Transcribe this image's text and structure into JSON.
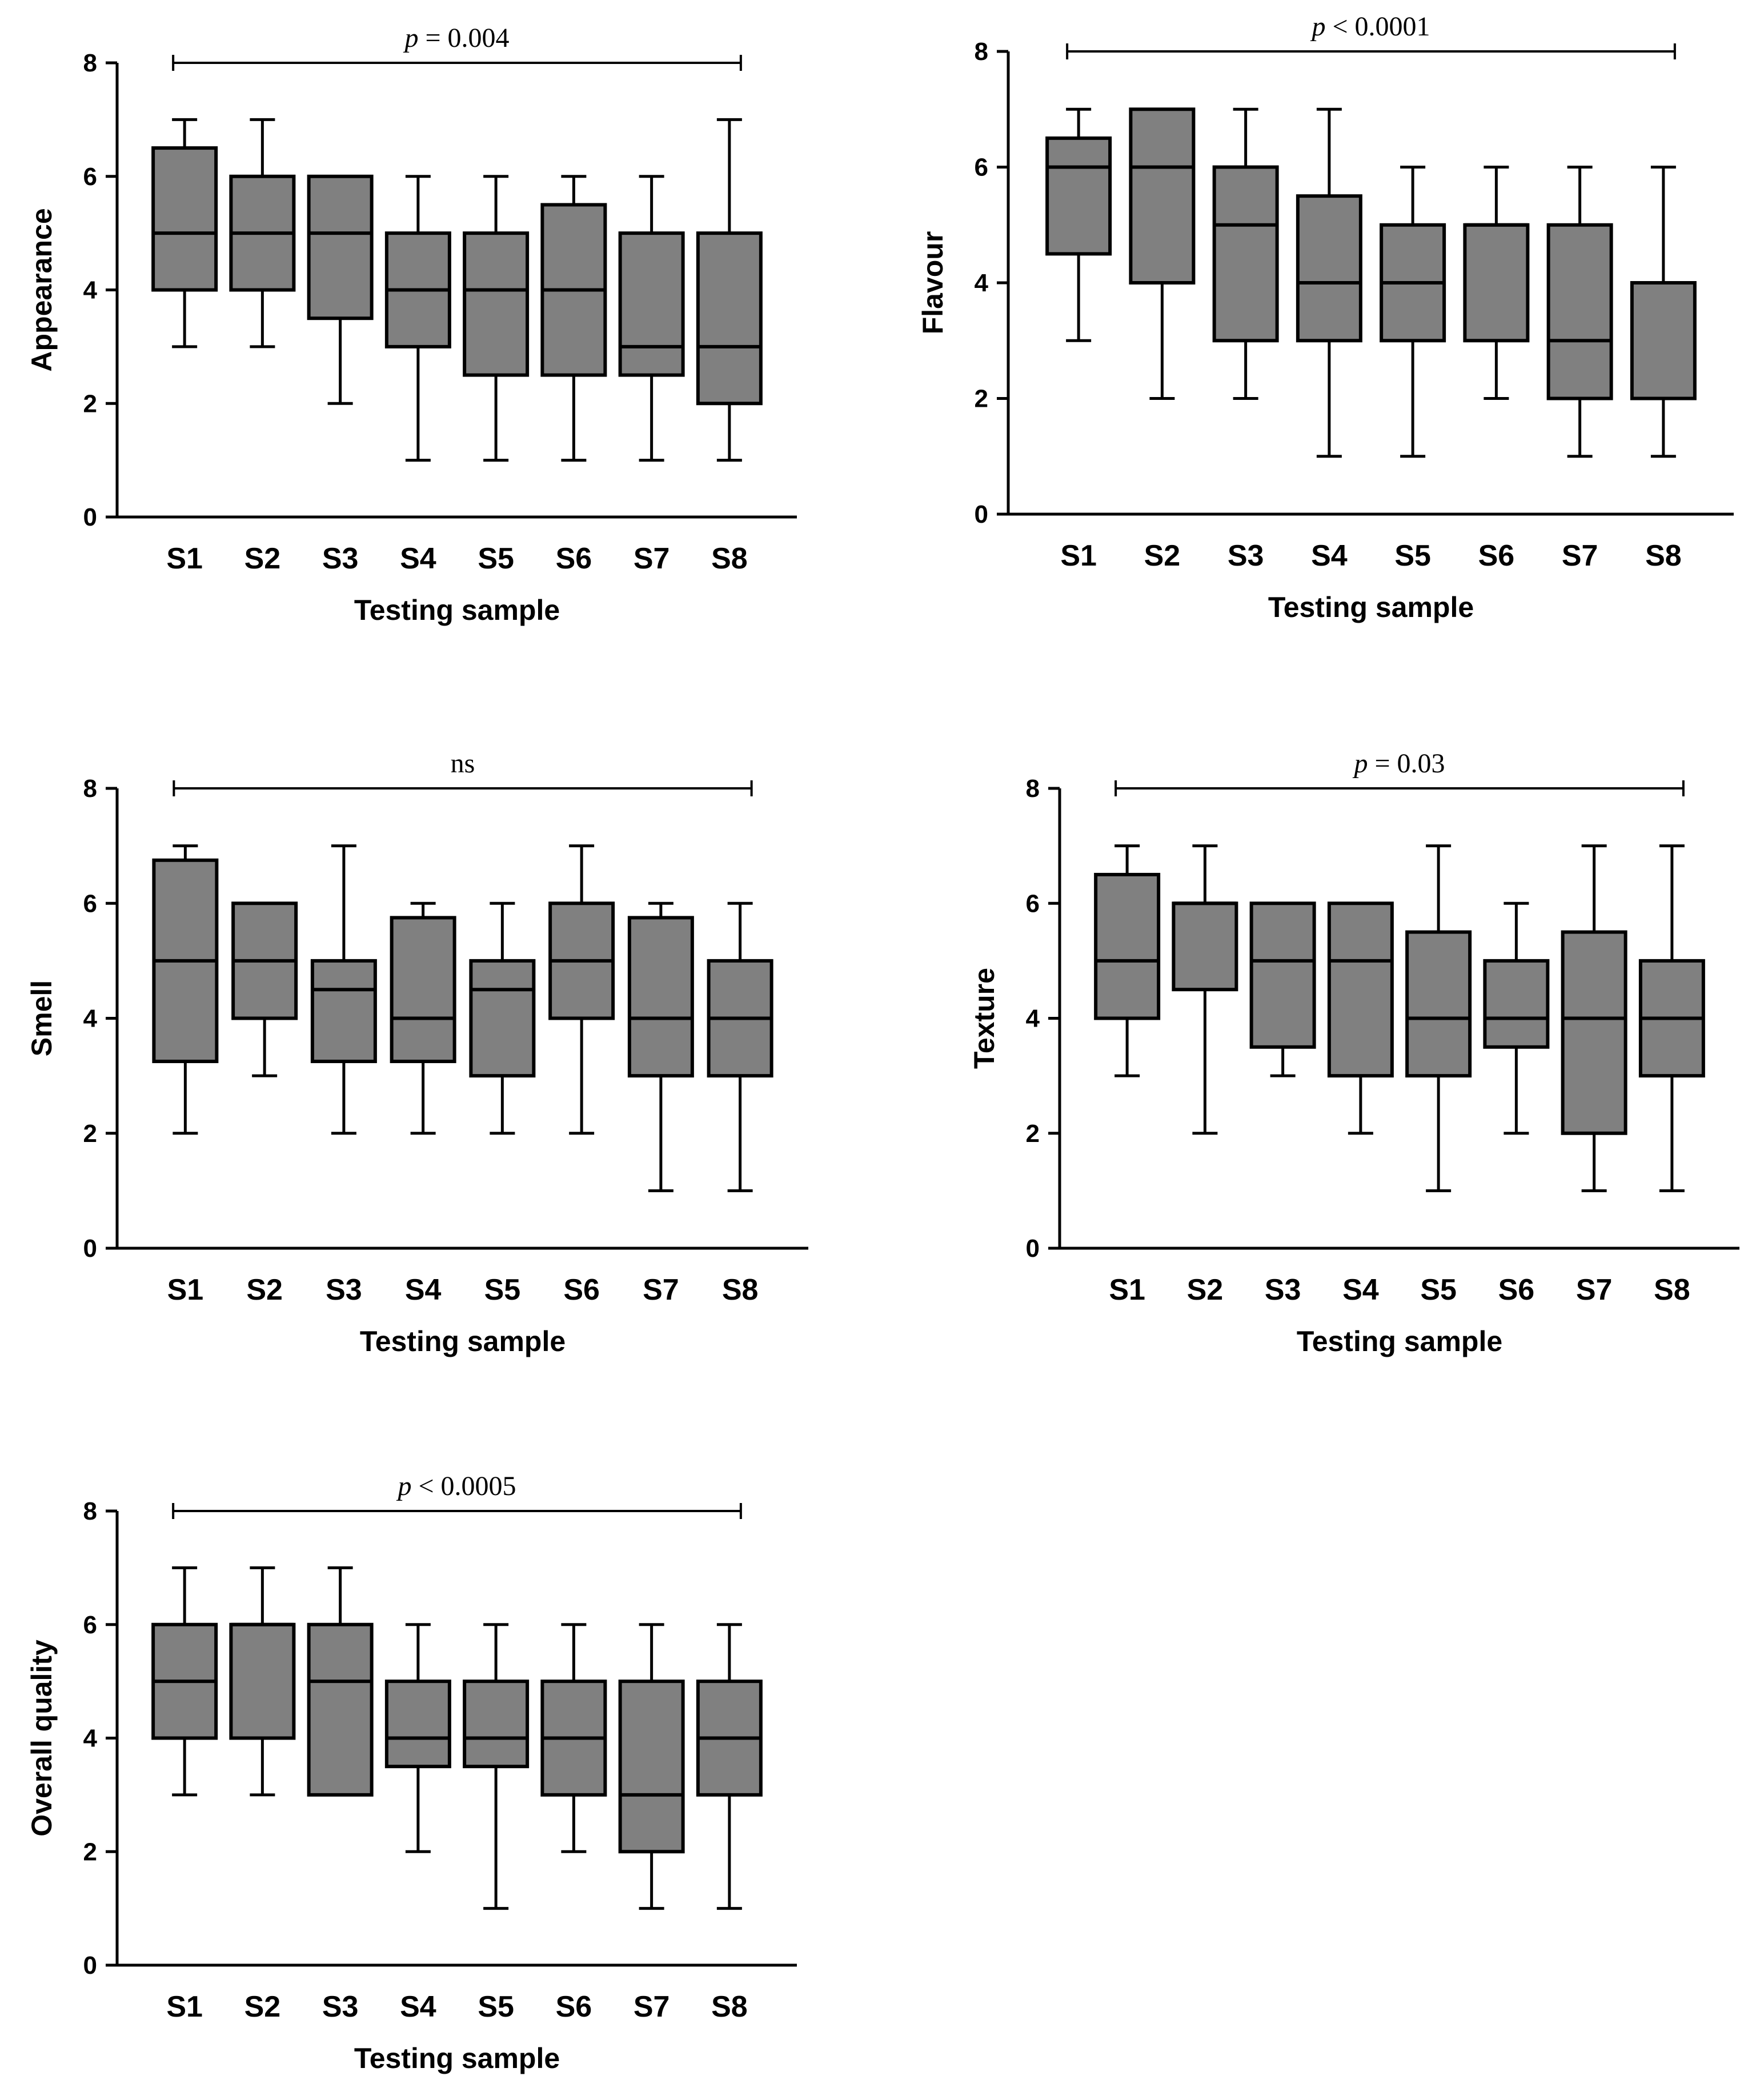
{
  "figure_layout": "2-column grid, 3 rows, last row single panel",
  "chart_data": [
    {
      "type": "boxplot",
      "ylabel": "Appearance",
      "xlabel": "Testing sample",
      "ylim": [
        0,
        8
      ],
      "yticks": [
        "0",
        "2",
        "4",
        "6",
        "8"
      ],
      "categories": [
        "S1",
        "S2",
        "S3",
        "S4",
        "S5",
        "S6",
        "S7",
        "S8"
      ],
      "significance": {
        "prefix": "p",
        "text": " = 0.004"
      },
      "boxes": [
        {
          "min": 3,
          "q1": 4,
          "median": 5,
          "q3": 6.5,
          "max": 7
        },
        {
          "min": 3,
          "q1": 4,
          "median": 5,
          "q3": 6,
          "max": 7
        },
        {
          "min": 2,
          "q1": 3.5,
          "median": 5,
          "q3": 6,
          "max": 6
        },
        {
          "min": 1,
          "q1": 3,
          "median": 4,
          "q3": 5,
          "max": 6
        },
        {
          "min": 1,
          "q1": 2.5,
          "median": 4,
          "q3": 5,
          "max": 6
        },
        {
          "min": 1,
          "q1": 2.5,
          "median": 4,
          "q3": 5.5,
          "max": 6
        },
        {
          "min": 1,
          "q1": 2.5,
          "median": 3,
          "q3": 5,
          "max": 6
        },
        {
          "min": 1,
          "q1": 2,
          "median": 3,
          "q3": 5,
          "max": 7
        }
      ]
    },
    {
      "type": "boxplot",
      "ylabel": "Flavour",
      "xlabel": "Testing sample",
      "ylim": [
        0,
        8
      ],
      "yticks": [
        "0",
        "2",
        "4",
        "6",
        "8"
      ],
      "categories": [
        "S1",
        "S2",
        "S3",
        "S4",
        "S5",
        "S6",
        "S7",
        "S8"
      ],
      "significance": {
        "prefix": "p",
        "text": " < 0.0001"
      },
      "boxes": [
        {
          "min": 3,
          "q1": 4.5,
          "median": 6,
          "q3": 6.5,
          "max": 7
        },
        {
          "min": 2,
          "q1": 4,
          "median": 6,
          "q3": 7,
          "max": 7
        },
        {
          "min": 2,
          "q1": 3,
          "median": 5,
          "q3": 6,
          "max": 7
        },
        {
          "min": 1,
          "q1": 3,
          "median": 4,
          "q3": 5.5,
          "max": 7
        },
        {
          "min": 1,
          "q1": 3,
          "median": 4,
          "q3": 5,
          "max": 6
        },
        {
          "min": 2,
          "q1": 3,
          "median": 5,
          "q3": 5,
          "max": 6
        },
        {
          "min": 1,
          "q1": 2,
          "median": 3,
          "q3": 5,
          "max": 6
        },
        {
          "min": 1,
          "q1": 2,
          "median": 4,
          "q3": 4,
          "max": 6
        }
      ]
    },
    {
      "type": "boxplot",
      "ylabel": "Smell",
      "xlabel": "Testing sample",
      "ylim": [
        0,
        8
      ],
      "yticks": [
        "0",
        "2",
        "4",
        "6",
        "8"
      ],
      "categories": [
        "S1",
        "S2",
        "S3",
        "S4",
        "S5",
        "S6",
        "S7",
        "S8"
      ],
      "significance": {
        "prefix": "",
        "text": "ns"
      },
      "boxes": [
        {
          "min": 2,
          "q1": 3.25,
          "median": 5,
          "q3": 6.75,
          "max": 7
        },
        {
          "min": 3,
          "q1": 4,
          "median": 5,
          "q3": 6,
          "max": 6
        },
        {
          "min": 2,
          "q1": 3.25,
          "median": 4.5,
          "q3": 5,
          "max": 7
        },
        {
          "min": 2,
          "q1": 3.25,
          "median": 4,
          "q3": 5.75,
          "max": 6
        },
        {
          "min": 2,
          "q1": 3,
          "median": 4.5,
          "q3": 5,
          "max": 6
        },
        {
          "min": 2,
          "q1": 4,
          "median": 5,
          "q3": 6,
          "max": 7
        },
        {
          "min": 1,
          "q1": 3,
          "median": 4,
          "q3": 5.75,
          "max": 6
        },
        {
          "min": 1,
          "q1": 3,
          "median": 4,
          "q3": 5,
          "max": 6
        }
      ]
    },
    {
      "type": "boxplot",
      "ylabel": "Texture",
      "xlabel": "Testing sample",
      "ylim": [
        0,
        8
      ],
      "yticks": [
        "0",
        "2",
        "4",
        "6",
        "8"
      ],
      "categories": [
        "S1",
        "S2",
        "S3",
        "S4",
        "S5",
        "S6",
        "S7",
        "S8"
      ],
      "significance": {
        "prefix": "p",
        "text": " = 0.03"
      },
      "boxes": [
        {
          "min": 3,
          "q1": 4,
          "median": 5,
          "q3": 6.5,
          "max": 7
        },
        {
          "min": 2,
          "q1": 4.5,
          "median": 6,
          "q3": 6,
          "max": 7
        },
        {
          "min": 3,
          "q1": 3.5,
          "median": 5,
          "q3": 6,
          "max": 6
        },
        {
          "min": 2,
          "q1": 3,
          "median": 5,
          "q3": 6,
          "max": 6
        },
        {
          "min": 1,
          "q1": 3,
          "median": 4,
          "q3": 5.5,
          "max": 7
        },
        {
          "min": 2,
          "q1": 3.5,
          "median": 4,
          "q3": 5,
          "max": 6
        },
        {
          "min": 1,
          "q1": 2,
          "median": 4,
          "q3": 5.5,
          "max": 7
        },
        {
          "min": 1,
          "q1": 3,
          "median": 4,
          "q3": 5,
          "max": 7
        }
      ]
    },
    {
      "type": "boxplot",
      "ylabel": "Overall quality",
      "xlabel": "Testing sample",
      "ylim": [
        0,
        8
      ],
      "yticks": [
        "0",
        "2",
        "4",
        "6",
        "8"
      ],
      "categories": [
        "S1",
        "S2",
        "S3",
        "S4",
        "S5",
        "S6",
        "S7",
        "S8"
      ],
      "significance": {
        "prefix": "p",
        "text": " < 0.0005"
      },
      "boxes": [
        {
          "min": 3,
          "q1": 4,
          "median": 5,
          "q3": 6,
          "max": 7
        },
        {
          "min": 3,
          "q1": 4,
          "median": 6,
          "q3": 6,
          "max": 7
        },
        {
          "min": 3,
          "q1": 3,
          "median": 5,
          "q3": 6,
          "max": 7
        },
        {
          "min": 2,
          "q1": 3.5,
          "median": 4,
          "q3": 5,
          "max": 6
        },
        {
          "min": 1,
          "q1": 3.5,
          "median": 4,
          "q3": 5,
          "max": 6
        },
        {
          "min": 2,
          "q1": 3,
          "median": 4,
          "q3": 5,
          "max": 6
        },
        {
          "min": 1,
          "q1": 2,
          "median": 3,
          "q3": 5,
          "max": 6
        },
        {
          "min": 1,
          "q1": 3,
          "median": 4,
          "q3": 5,
          "max": 6
        }
      ]
    }
  ],
  "colors": {
    "box_fill": "#808080",
    "stroke": "#000000"
  }
}
